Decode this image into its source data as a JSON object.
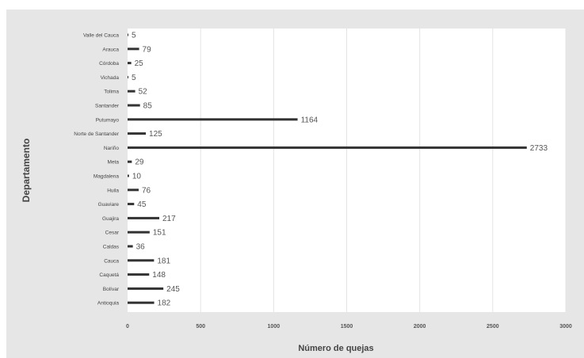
{
  "chart_data": {
    "type": "bar",
    "orientation": "horizontal",
    "title": "",
    "xlabel": "Número de quejas",
    "ylabel": "Departamento",
    "xlim": [
      0,
      3000
    ],
    "xticks": [
      0,
      500,
      1000,
      1500,
      2000,
      2500,
      3000
    ],
    "grid": "vertical",
    "legend": "none",
    "bar_color": "#333333",
    "gridline_color": "#e4e4e4",
    "background_color": "#e6e6e6",
    "plot_background_color": "#ffffff",
    "categories": [
      "Valle del Cauca",
      "Arauca",
      "Córdoba",
      "Vichada",
      "Tolima",
      "Santander",
      "Putumayo",
      "Norte de Santander",
      "Nariño",
      "Meta",
      "Magdalena",
      "Huila",
      "Guaviare",
      "Guajira",
      "Cesar",
      "Caldas",
      "Cauca",
      "Caquetá",
      "Bolívar",
      "Antioquia"
    ],
    "values": [
      5,
      79,
      25,
      5,
      52,
      85,
      1164,
      125,
      2733,
      29,
      10,
      76,
      45,
      217,
      151,
      36,
      181,
      148,
      245,
      182
    ],
    "value_labels": [
      "5",
      "79",
      "25",
      "5",
      "52",
      "85",
      "1164",
      "125",
      "2733",
      "29",
      "10",
      "76",
      "45",
      "217",
      "151",
      "36",
      "181",
      "148",
      "245",
      "182"
    ]
  }
}
